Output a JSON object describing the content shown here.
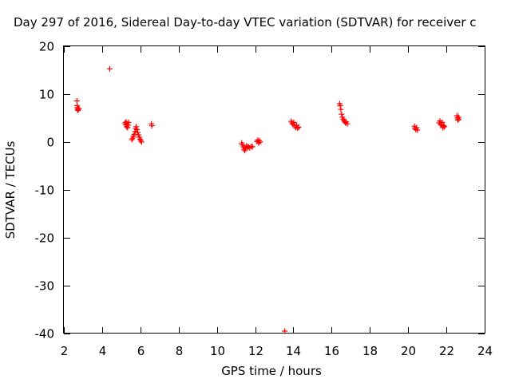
{
  "chart_data": {
    "type": "scatter",
    "title": "Day 297 of 2016, Sidereal Day-to-day VTEC variation (SDTVAR) for receiver c",
    "xlabel": "GPS time / hours",
    "ylabel": "SDTVAR / TECUs",
    "xlim": [
      2,
      24
    ],
    "ylim": [
      -40,
      20
    ],
    "xticks": [
      2,
      4,
      6,
      8,
      10,
      12,
      14,
      16,
      18,
      20,
      22,
      24
    ],
    "yticks": [
      -40,
      -30,
      -20,
      -10,
      0,
      10,
      20
    ],
    "xtick_labels": [
      "2",
      "4",
      "6",
      "8",
      "10",
      "12",
      "14",
      "16",
      "18",
      "20",
      "22",
      "24"
    ],
    "ytick_labels": [
      "-40",
      "-30",
      "-20",
      "-10",
      "0",
      "10",
      "20"
    ],
    "grid": false,
    "marker": "plus",
    "color": "#ff0000",
    "series": [
      {
        "name": "SDTVAR",
        "points": [
          [
            2.68,
            8.6
          ],
          [
            2.69,
            7.6
          ],
          [
            2.7,
            7.2
          ],
          [
            2.72,
            6.8
          ],
          [
            2.74,
            6.6
          ],
          [
            2.76,
            7.0
          ],
          [
            2.78,
            6.9
          ],
          [
            4.4,
            15.3
          ],
          [
            5.2,
            4.0
          ],
          [
            5.23,
            3.6
          ],
          [
            5.26,
            4.2
          ],
          [
            5.28,
            3.2
          ],
          [
            5.3,
            3.8
          ],
          [
            5.33,
            3.0
          ],
          [
            5.36,
            3.5
          ],
          [
            5.38,
            4.1
          ],
          [
            5.55,
            0.5
          ],
          [
            5.6,
            0.8
          ],
          [
            5.64,
            1.2
          ],
          [
            5.68,
            1.6
          ],
          [
            5.72,
            2.2
          ],
          [
            5.75,
            2.8
          ],
          [
            5.78,
            3.2
          ],
          [
            5.82,
            2.6
          ],
          [
            5.86,
            2.0
          ],
          [
            5.9,
            1.5
          ],
          [
            5.94,
            1.0
          ],
          [
            5.98,
            0.6
          ],
          [
            6.02,
            0.3
          ],
          [
            6.06,
            0.0
          ],
          [
            6.58,
            3.8
          ],
          [
            6.6,
            3.4
          ],
          [
            11.3,
            -0.2
          ],
          [
            11.34,
            -0.6
          ],
          [
            11.38,
            -1.0
          ],
          [
            11.42,
            -1.5
          ],
          [
            11.46,
            -1.8
          ],
          [
            11.5,
            -1.3
          ],
          [
            11.55,
            -0.8
          ],
          [
            11.6,
            -1.1
          ],
          [
            11.66,
            -1.0
          ],
          [
            11.72,
            -1.2
          ],
          [
            11.8,
            -0.9
          ],
          [
            11.86,
            -1.0
          ],
          [
            12.1,
            0.1
          ],
          [
            12.14,
            0.4
          ],
          [
            12.18,
            -0.2
          ],
          [
            12.22,
            0.3
          ],
          [
            12.26,
            0.0
          ],
          [
            13.55,
            -39.5
          ],
          [
            13.88,
            4.3
          ],
          [
            13.93,
            4.0
          ],
          [
            13.97,
            3.7
          ],
          [
            14.02,
            4.1
          ],
          [
            14.07,
            3.4
          ],
          [
            14.12,
            3.0
          ],
          [
            14.17,
            3.5
          ],
          [
            14.22,
            2.9
          ],
          [
            14.27,
            3.1
          ],
          [
            16.42,
            8.0
          ],
          [
            16.45,
            7.6
          ],
          [
            16.48,
            6.8
          ],
          [
            16.52,
            5.8
          ],
          [
            16.56,
            5.2
          ],
          [
            16.6,
            4.8
          ],
          [
            16.64,
            4.5
          ],
          [
            16.68,
            4.3
          ],
          [
            16.72,
            4.0
          ],
          [
            16.76,
            4.2
          ],
          [
            16.82,
            3.8
          ],
          [
            20.33,
            3.3
          ],
          [
            20.36,
            2.9
          ],
          [
            20.4,
            2.6
          ],
          [
            20.44,
            3.0
          ],
          [
            20.48,
            2.5
          ],
          [
            21.62,
            4.0
          ],
          [
            21.66,
            4.4
          ],
          [
            21.7,
            3.7
          ],
          [
            21.74,
            3.5
          ],
          [
            21.78,
            4.1
          ],
          [
            21.82,
            3.0
          ],
          [
            21.86,
            3.4
          ],
          [
            21.9,
            3.2
          ],
          [
            22.55,
            5.5
          ],
          [
            22.58,
            5.0
          ],
          [
            22.6,
            4.6
          ],
          [
            22.63,
            5.2
          ],
          [
            22.65,
            4.8
          ]
        ]
      }
    ]
  }
}
